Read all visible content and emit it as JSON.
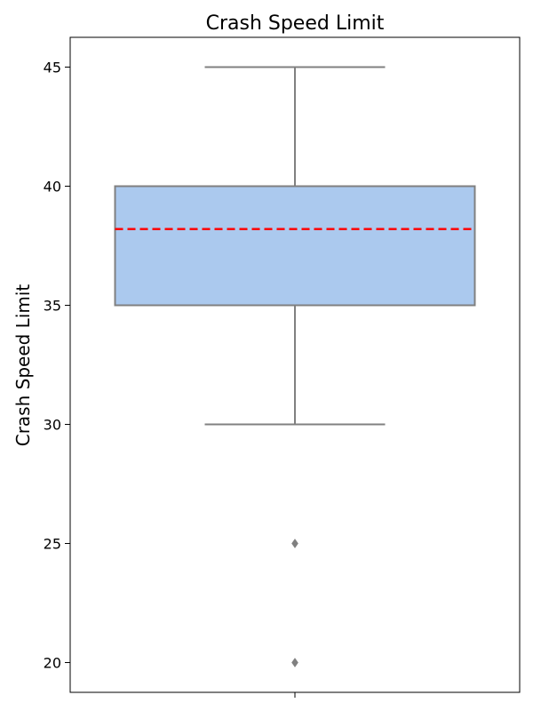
{
  "chart_data": {
    "type": "box",
    "title": "Crash Speed Limit",
    "xlabel": "",
    "ylabel": "Crash Speed Limit",
    "ylim": [
      18.75,
      46.25
    ],
    "yticks": [
      20,
      25,
      30,
      35,
      40,
      45
    ],
    "grid": false,
    "legend": "none",
    "box": {
      "whisker_low": 30,
      "q1": 35,
      "q3": 40,
      "whisker_high": 45,
      "mean": 38.2,
      "outliers": [
        25,
        20
      ]
    },
    "colors": {
      "box_fill": "#abc9ee",
      "box_edge": "#808080",
      "mean_line": "#ff0000",
      "outlier": "#808080"
    }
  }
}
